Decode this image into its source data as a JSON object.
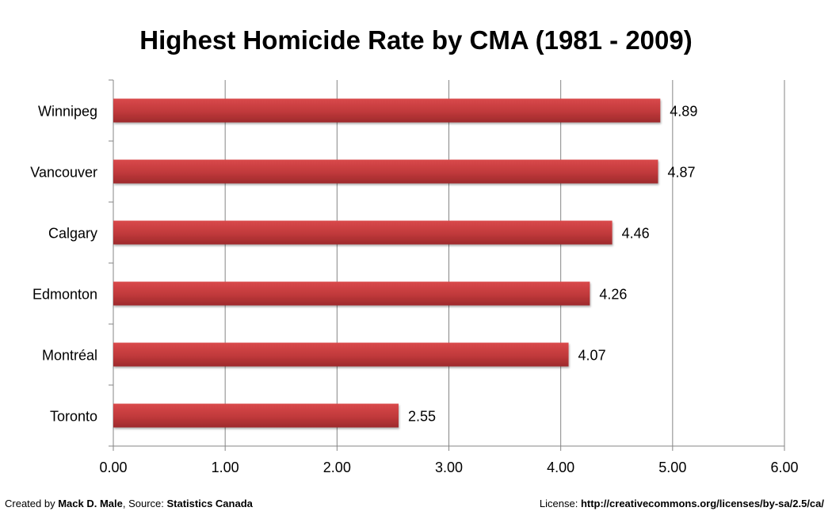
{
  "chart_data": {
    "type": "bar",
    "orientation": "horizontal",
    "title": "Highest Homicide Rate by CMA (1981 - 2009)",
    "categories": [
      "Winnipeg",
      "Vancouver",
      "Calgary",
      "Edmonton",
      "Montréal",
      "Toronto"
    ],
    "values": [
      4.89,
      4.87,
      4.46,
      4.26,
      4.07,
      2.55
    ],
    "data_labels": [
      "4.89",
      "4.87",
      "4.46",
      "4.26",
      "4.07",
      "2.55"
    ],
    "xlim": [
      0,
      6
    ],
    "xticks": [
      "0.00",
      "1.00",
      "2.00",
      "3.00",
      "4.00",
      "5.00",
      "6.00"
    ],
    "xlabel": "",
    "ylabel": "",
    "grid": "vertical",
    "bar_color": "#c0393b",
    "legend": "none"
  },
  "footer": {
    "created_prefix": "Created by ",
    "author": "Mack D. Male",
    "source_prefix": ", Source: ",
    "source": "Statistics Canada",
    "license_prefix": "License: ",
    "license_url": "http://creativecommons.org/licenses/by-sa/2.5/ca/"
  }
}
